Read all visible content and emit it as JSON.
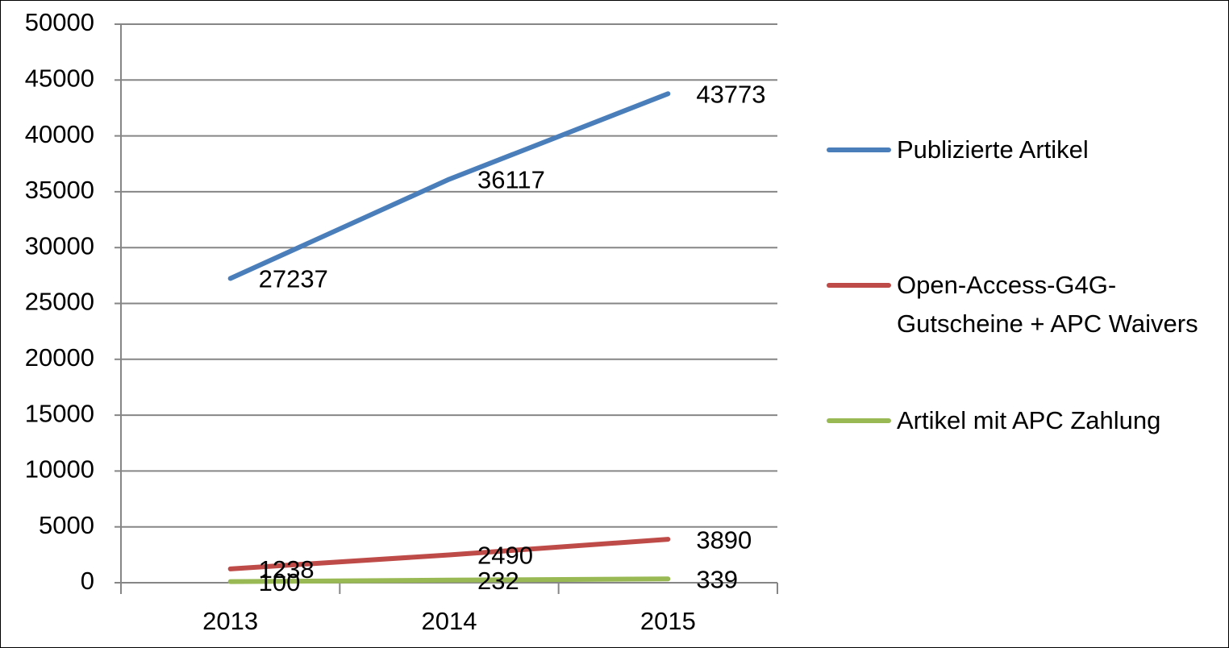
{
  "chart_data": {
    "type": "line",
    "categories": [
      "2013",
      "2014",
      "2015"
    ],
    "series": [
      {
        "name": "Publizierte Artikel",
        "color": "#4a7ebb",
        "values": [
          27237,
          36117,
          43773
        ]
      },
      {
        "name": "Open-Access-G4G-Gutscheine + APC Waivers",
        "color": "#be4b48",
        "values": [
          1238,
          2490,
          3890
        ]
      },
      {
        "name": "Artikel mit APC Zahlung",
        "color": "#98b954",
        "values": [
          100,
          232,
          339
        ]
      }
    ],
    "ylim": [
      0,
      50000
    ],
    "yticks": [
      0,
      5000,
      10000,
      15000,
      20000,
      25000,
      30000,
      35000,
      40000,
      45000,
      50000
    ],
    "grid": true,
    "data_labels": true,
    "legend": "right"
  }
}
